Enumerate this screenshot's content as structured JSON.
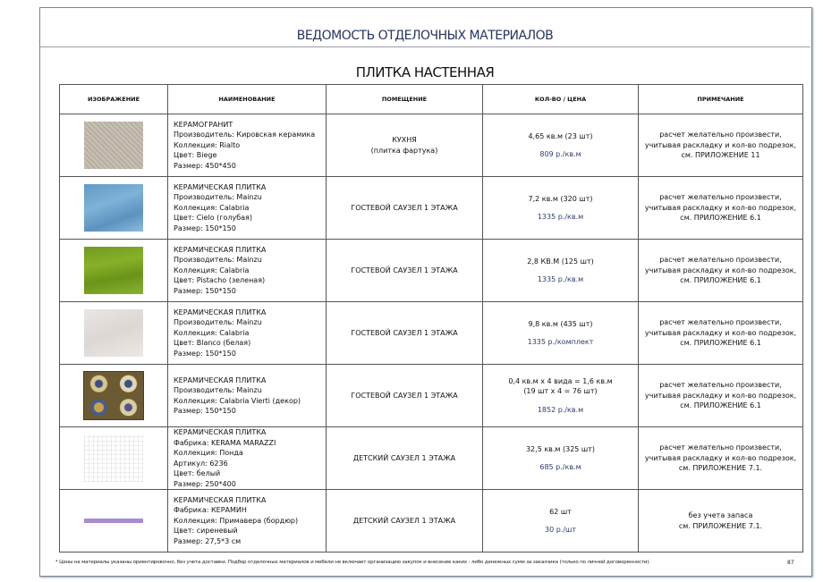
{
  "document": {
    "title": "ВЕДОМОСТЬ ОТДЕЛОЧНЫХ МАТЕРИАЛОВ",
    "section_title": "ПЛИТКА НАСТЕННАЯ",
    "page_number": "87",
    "footnote": "* Цены на материалы указаны ориентировочно, без учета доставки. Подбор отделочных материалов и мебели не включает организацию закупок и внесение каких - либо денежных сумм за заказчика (только по личной договоренности)."
  },
  "table": {
    "headers": [
      "ИЗОБРАЖЕНИЕ",
      "НАИМЕНОВАНИЕ",
      "ПОМЕЩЕНИЕ",
      "КОЛ-ВО / ЦЕНА",
      "ПРИМЕЧАНИЕ"
    ],
    "rows": [
      {
        "swatch": "beige-pattern-tile",
        "name": [
          "КЕРАМОГРАНИТ",
          "Производитель: Кировская керамика",
          "Коллекция: Rialto",
          "Цвет: Biege",
          "Размер: 450*450"
        ],
        "room": [
          "КУХНЯ",
          "(плитка фартука)"
        ],
        "qty": [
          "4,65 кв.м (23 шт)"
        ],
        "price": "809 р./кв.м",
        "note": [
          "расчет желательно произвести,",
          "учитывая раскладку и кол-во подрезок,",
          "см. ПРИЛОЖЕНИЕ 11"
        ]
      },
      {
        "swatch": "blue-tile",
        "name": [
          "КЕРАМИЧЕСКАЯ ПЛИТКА",
          "Производитель: Mainzu",
          "Коллекция: Calabria",
          "Цвет: Cielo (голубая)",
          "Размер: 150*150"
        ],
        "room": [
          "ГОСТЕВОЙ САУЗЕЛ 1 ЭТАЖА"
        ],
        "qty": [
          "7,2 кв.м (320 шт)"
        ],
        "price": "1335 р./кв.м",
        "note": [
          "расчет желательно произвести,",
          "учитывая раскладку и кол-во подрезок,",
          "см. ПРИЛОЖЕНИЕ 6.1"
        ]
      },
      {
        "swatch": "green-tile",
        "name": [
          "КЕРАМИЧЕСКАЯ ПЛИТКА",
          "Производитель: Mainzu",
          "Коллекция: Calabria",
          "Цвет: Pistacho (зеленая)",
          "Размер: 150*150"
        ],
        "room": [
          "ГОСТЕВОЙ САУЗЕЛ 1 ЭТАЖА"
        ],
        "qty": [
          "2,8 КВ.М (125 шт)"
        ],
        "price": "1335 р./кв.м",
        "note": [
          "расчет желательно произвести,",
          "учитывая раскладку и кол-во подрезок,",
          "см. ПРИЛОЖЕНИЕ 6.1"
        ]
      },
      {
        "swatch": "white-tile",
        "name": [
          "КЕРАМИЧЕСКАЯ ПЛИТКА",
          "Производитель: Mainzu",
          "Коллекция: Calabria",
          "Цвет: Blanco (белая)",
          "Размер: 150*150"
        ],
        "room": [
          "ГОСТЕВОЙ САУЗЕЛ 1 ЭТАЖА"
        ],
        "qty": [
          "9,8 кв.м (435 шт)"
        ],
        "price": "1335 р./комплект",
        "note": [
          "расчет желательно произвести,",
          "учитывая раскладку и кол-во подрезок,",
          "см. ПРИЛОЖЕНИЕ 6.1"
        ]
      },
      {
        "swatch": "decor-tile",
        "name": [
          "КЕРАМИЧЕСКАЯ ПЛИТКА",
          "Производитель: Mainzu",
          "Коллекция: Calabria Vierti (декор)",
          "Размер: 150*150"
        ],
        "room": [
          "ГОСТЕВОЙ САУЗЕЛ 1 ЭТАЖА"
        ],
        "qty": [
          "0,4 кв.м х 4 вида = 1,6 кв.м",
          "(19 шт х 4 = 76 шт)"
        ],
        "price": "1852 р./кв.м",
        "note": [
          "расчет желательно произвести,",
          "учитывая раскладку и кол-во подрезок,",
          "см. ПРИЛОЖЕНИЕ 6.1"
        ]
      },
      {
        "swatch": "white-grid-tile",
        "name": [
          "КЕРАМИЧЕСКАЯ ПЛИТКА",
          "Фабрика: KERAMA MARAZZI",
          "Коллекция: Понда",
          "Артикул: 6236",
          "Цвет: белый",
          "Размер: 250*400"
        ],
        "room": [
          "ДЕТСКИЙ САУЗЕЛ 1 ЭТАЖА"
        ],
        "qty": [
          "32,5 кв.м (325 шт)"
        ],
        "price": "685 р./кв.м",
        "note": [
          "расчет желательно произвести,",
          "учитывая раскладку и кол-во подрезок,",
          "см. ПРИЛОЖЕНИЕ 7.1."
        ]
      },
      {
        "swatch": "lilac-border",
        "name": [
          "КЕРАМИЧЕСКАЯ ПЛИТКА",
          "Фабрика: КЕРАМИН",
          "Коллекция: Примавера (бордюр)",
          "Цвет: сиреневый",
          "Размер: 27,5*3 см"
        ],
        "room": [
          "ДЕТСКИЙ САУЗЕЛ 1 ЭТАЖА"
        ],
        "qty": [
          "62 шт"
        ],
        "price": "30 р./шт",
        "note": [
          "без учета запаса",
          "см. ПРИЛОЖЕНИЕ 7.1."
        ]
      }
    ]
  }
}
